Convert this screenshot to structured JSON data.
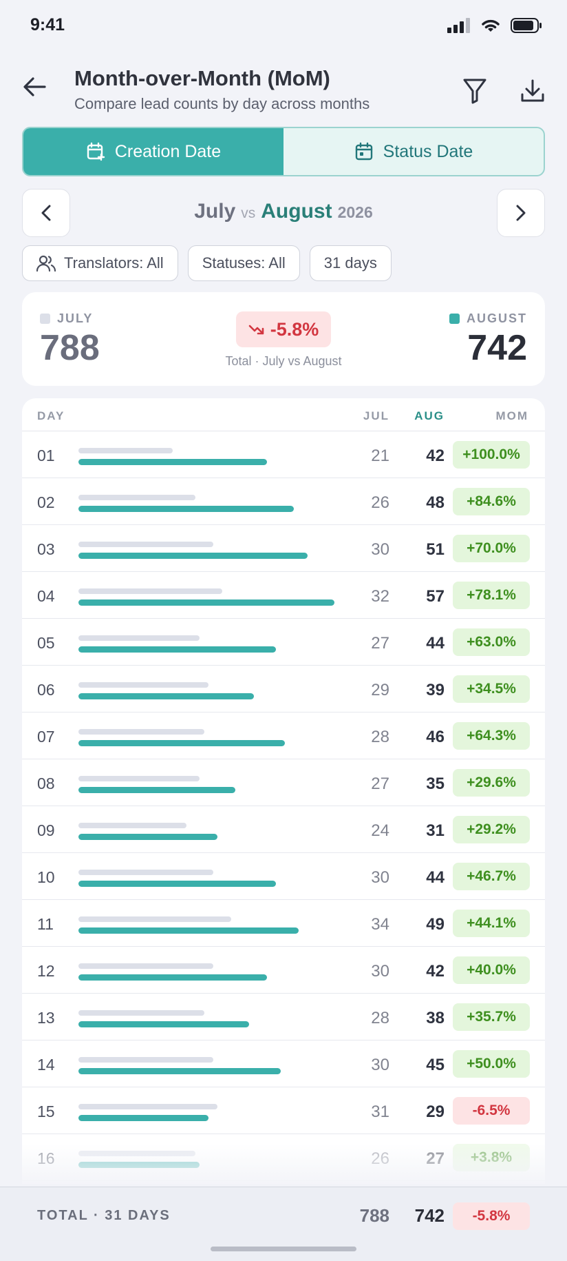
{
  "status_bar": {
    "time": "9:41"
  },
  "header": {
    "title": "Month-over-Month (MoM)",
    "subtitle": "Compare lead counts by day across months"
  },
  "segments": [
    {
      "label": "Creation Date",
      "active": true
    },
    {
      "label": "Status Date",
      "active": false
    }
  ],
  "month_nav": {
    "month_a": "July",
    "vs": "vs",
    "month_b": "August",
    "year": "2026"
  },
  "chips": {
    "translators": "Translators: All",
    "statuses": "Statuses: All",
    "days": "31 days"
  },
  "summary": {
    "left_label": "JULY",
    "left_value": "788",
    "delta": "-5.8%",
    "caption": "Total · July vs August",
    "right_label": "AUGUST",
    "right_value": "742"
  },
  "table": {
    "headers": {
      "day": "DAY",
      "jul": "JUL",
      "aug": "AUG",
      "mom": "MOM"
    },
    "rows": [
      {
        "day": "01",
        "jul": 21,
        "aug": 42,
        "mom": "+100.0%",
        "sign": "pos"
      },
      {
        "day": "02",
        "jul": 26,
        "aug": 48,
        "mom": "+84.6%",
        "sign": "pos"
      },
      {
        "day": "03",
        "jul": 30,
        "aug": 51,
        "mom": "+70.0%",
        "sign": "pos"
      },
      {
        "day": "04",
        "jul": 32,
        "aug": 57,
        "mom": "+78.1%",
        "sign": "pos"
      },
      {
        "day": "05",
        "jul": 27,
        "aug": 44,
        "mom": "+63.0%",
        "sign": "pos"
      },
      {
        "day": "06",
        "jul": 29,
        "aug": 39,
        "mom": "+34.5%",
        "sign": "pos"
      },
      {
        "day": "07",
        "jul": 28,
        "aug": 46,
        "mom": "+64.3%",
        "sign": "pos"
      },
      {
        "day": "08",
        "jul": 27,
        "aug": 35,
        "mom": "+29.6%",
        "sign": "pos"
      },
      {
        "day": "09",
        "jul": 24,
        "aug": 31,
        "mom": "+29.2%",
        "sign": "pos"
      },
      {
        "day": "10",
        "jul": 30,
        "aug": 44,
        "mom": "+46.7%",
        "sign": "pos"
      },
      {
        "day": "11",
        "jul": 34,
        "aug": 49,
        "mom": "+44.1%",
        "sign": "pos"
      },
      {
        "day": "12",
        "jul": 30,
        "aug": 42,
        "mom": "+40.0%",
        "sign": "pos"
      },
      {
        "day": "13",
        "jul": 28,
        "aug": 38,
        "mom": "+35.7%",
        "sign": "pos"
      },
      {
        "day": "14",
        "jul": 30,
        "aug": 45,
        "mom": "+50.0%",
        "sign": "pos"
      },
      {
        "day": "15",
        "jul": 31,
        "aug": 29,
        "mom": "-6.5%",
        "sign": "neg"
      },
      {
        "day": "16",
        "jul": 26,
        "aug": 27,
        "mom": "+3.8%",
        "sign": "pos"
      }
    ]
  },
  "footer": {
    "label": "TOTAL · 31 DAYS",
    "jul": "788",
    "aug": "742",
    "mom": "-5.8%"
  },
  "colors": {
    "accent": "#3aafaa",
    "jul_bar": "#dcdfe8",
    "positive": "#3e8f1f",
    "negative": "#d23640"
  }
}
